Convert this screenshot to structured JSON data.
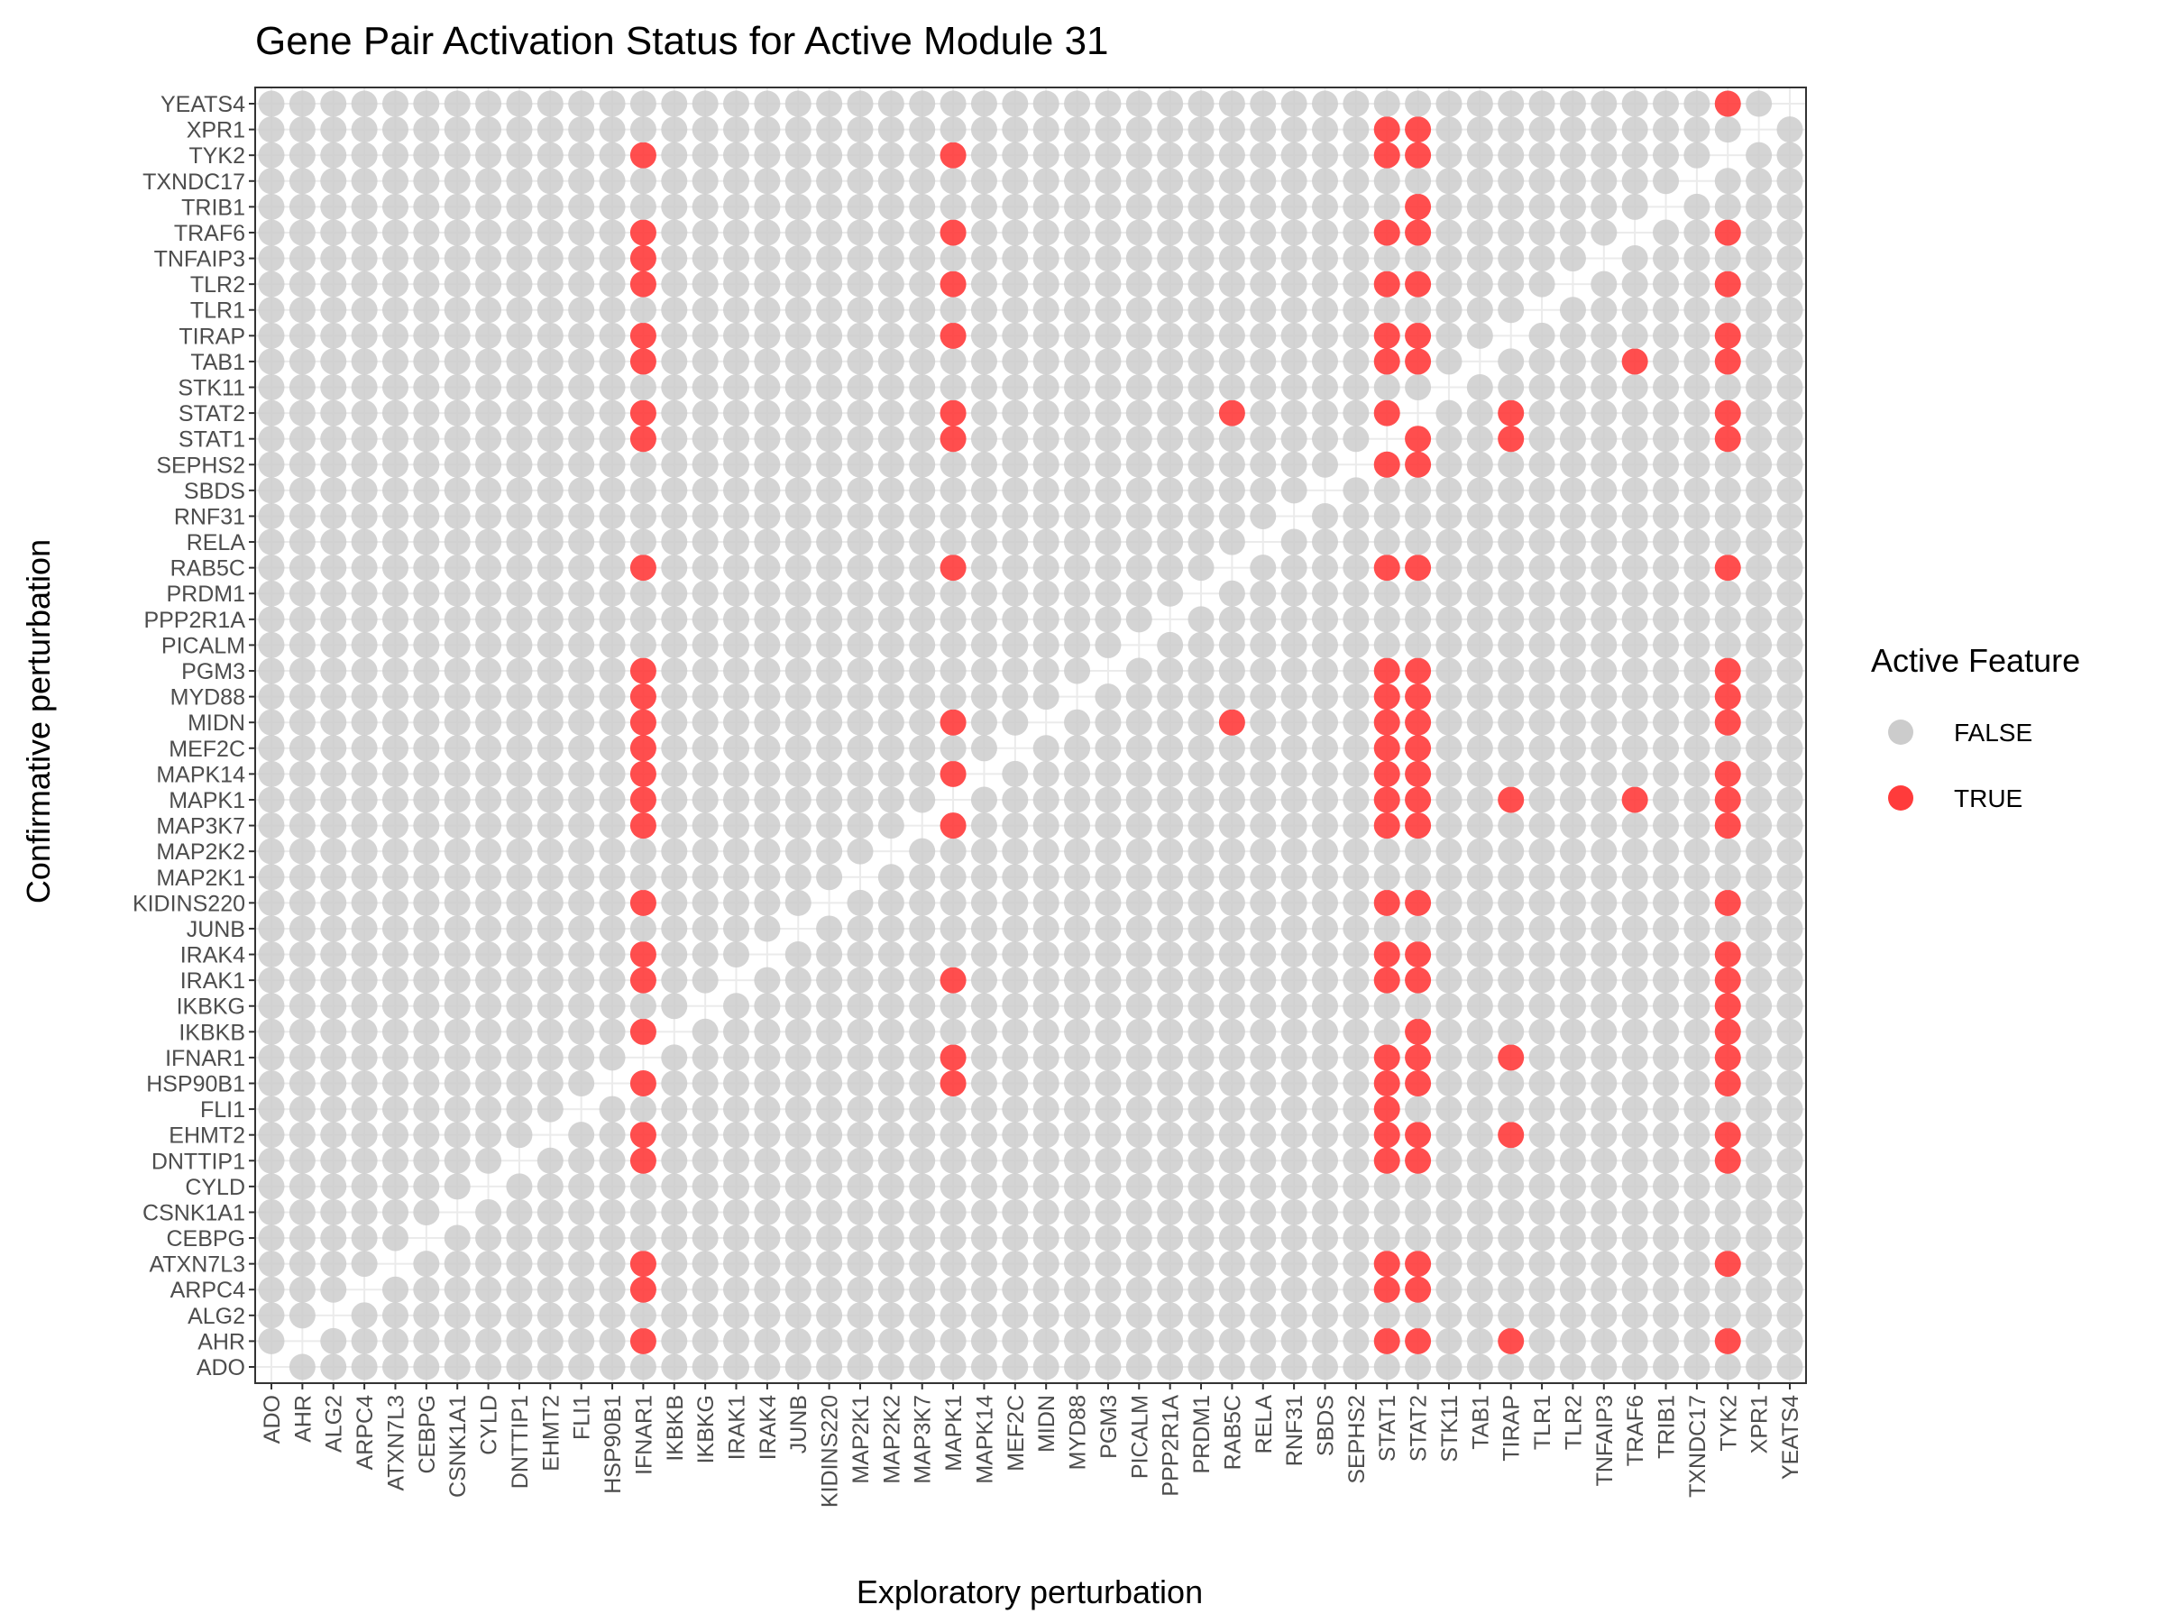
{
  "chart_data": {
    "type": "scatter",
    "title": "Gene Pair Activation Status for Active Module 31",
    "xlabel": "Exploratory perturbation",
    "ylabel": "Confirmative perturbation",
    "genes": [
      "ADO",
      "AHR",
      "ALG2",
      "ARPC4",
      "ATXN7L3",
      "CEBPG",
      "CSNK1A1",
      "CYLD",
      "DNTTIP1",
      "EHMT2",
      "FLI1",
      "HSP90B1",
      "IFNAR1",
      "IKBKB",
      "IKBKG",
      "IRAK1",
      "IRAK4",
      "JUNB",
      "KIDINS220",
      "MAP2K1",
      "MAP2K2",
      "MAP3K7",
      "MAPK1",
      "MAPK14",
      "MEF2C",
      "MIDN",
      "MYD88",
      "PGM3",
      "PICALM",
      "PPP2R1A",
      "PRDM1",
      "RAB5C",
      "RELA",
      "RNF31",
      "SBDS",
      "SEPHS2",
      "STAT1",
      "STAT2",
      "STK11",
      "TAB1",
      "TIRAP",
      "TLR1",
      "TLR2",
      "TNFAIP3",
      "TRAF6",
      "TRIB1",
      "TXNDC17",
      "TYK2",
      "XPR1",
      "YEATS4"
    ],
    "x_categories": [
      "ADO",
      "AHR",
      "ALG2",
      "ARPC4",
      "ATXN7L3",
      "CEBPG",
      "CSNK1A1",
      "CYLD",
      "DNTTIP1",
      "EHMT2",
      "FLI1",
      "HSP90B1",
      "IFNAR1",
      "IKBKB",
      "IKBKG",
      "IRAK1",
      "IRAK4",
      "JUNB",
      "KIDINS220",
      "MAP2K1",
      "MAP2K2",
      "MAP3K7",
      "MAPK1",
      "MAPK14",
      "MEF2C",
      "MIDN",
      "MYD88",
      "PGM3",
      "PICALM",
      "PPP2R1A",
      "PRDM1",
      "RAB5C",
      "RELA",
      "RNF31",
      "SBDS",
      "SEPHS2",
      "STAT1",
      "STAT2",
      "STK11",
      "TAB1",
      "TIRAP",
      "TLR1",
      "TLR2",
      "TNFAIP3",
      "TRAF6",
      "TRIB1",
      "TXNDC17",
      "TYK2",
      "XPR1",
      "YEATS4"
    ],
    "y_categories": [
      "ADO",
      "AHR",
      "ALG2",
      "ARPC4",
      "ATXN7L3",
      "CEBPG",
      "CSNK1A1",
      "CYLD",
      "DNTTIP1",
      "EHMT2",
      "FLI1",
      "HSP90B1",
      "IFNAR1",
      "IKBKB",
      "IKBKG",
      "IRAK1",
      "IRAK4",
      "JUNB",
      "KIDINS220",
      "MAP2K1",
      "MAP2K2",
      "MAP3K7",
      "MAPK1",
      "MAPK14",
      "MEF2C",
      "MIDN",
      "MYD88",
      "PGM3",
      "PICALM",
      "PPP2R1A",
      "PRDM1",
      "RAB5C",
      "RELA",
      "RNF31",
      "SBDS",
      "SEPHS2",
      "STAT1",
      "STAT2",
      "STK11",
      "TAB1",
      "TIRAP",
      "TLR1",
      "TLR2",
      "TNFAIP3",
      "TRAF6",
      "TRIB1",
      "TXNDC17",
      "TYK2",
      "XPR1",
      "YEATS4"
    ],
    "points_rule": "one point per pair (exploratory, confirmative) with exploratory != confirmative; all other pairs FALSE",
    "true_pairs": [
      {
        "confirmative": "YEATS4",
        "exploratory": [
          "TYK2"
        ]
      },
      {
        "confirmative": "XPR1",
        "exploratory": [
          "STAT1",
          "STAT2"
        ]
      },
      {
        "confirmative": "TYK2",
        "exploratory": [
          "IFNAR1",
          "MAPK1",
          "STAT1",
          "STAT2"
        ]
      },
      {
        "confirmative": "TRIB1",
        "exploratory": [
          "STAT2"
        ]
      },
      {
        "confirmative": "TRAF6",
        "exploratory": [
          "IFNAR1",
          "MAPK1",
          "STAT1",
          "STAT2",
          "TYK2"
        ]
      },
      {
        "confirmative": "TNFAIP3",
        "exploratory": [
          "IFNAR1"
        ]
      },
      {
        "confirmative": "TLR2",
        "exploratory": [
          "IFNAR1",
          "MAPK1",
          "STAT1",
          "STAT2",
          "TYK2"
        ]
      },
      {
        "confirmative": "TIRAP",
        "exploratory": [
          "IFNAR1",
          "MAPK1",
          "STAT1",
          "STAT2",
          "TYK2"
        ]
      },
      {
        "confirmative": "TAB1",
        "exploratory": [
          "IFNAR1",
          "STAT1",
          "STAT2",
          "TRAF6",
          "TYK2"
        ]
      },
      {
        "confirmative": "STAT2",
        "exploratory": [
          "IFNAR1",
          "MAPK1",
          "RAB5C",
          "STAT1",
          "TIRAP",
          "TYK2"
        ]
      },
      {
        "confirmative": "STAT1",
        "exploratory": [
          "IFNAR1",
          "MAPK1",
          "STAT2",
          "TIRAP",
          "TYK2"
        ]
      },
      {
        "confirmative": "SEPHS2",
        "exploratory": [
          "STAT1",
          "STAT2"
        ]
      },
      {
        "confirmative": "RAB5C",
        "exploratory": [
          "IFNAR1",
          "MAPK1",
          "STAT1",
          "STAT2",
          "TYK2"
        ]
      },
      {
        "confirmative": "PGM3",
        "exploratory": [
          "IFNAR1",
          "STAT1",
          "STAT2",
          "TYK2"
        ]
      },
      {
        "confirmative": "MYD88",
        "exploratory": [
          "IFNAR1",
          "STAT1",
          "STAT2",
          "TYK2"
        ]
      },
      {
        "confirmative": "MIDN",
        "exploratory": [
          "IFNAR1",
          "MAPK1",
          "RAB5C",
          "STAT1",
          "STAT2",
          "TYK2"
        ]
      },
      {
        "confirmative": "MEF2C",
        "exploratory": [
          "IFNAR1",
          "STAT1",
          "STAT2"
        ]
      },
      {
        "confirmative": "MAPK14",
        "exploratory": [
          "IFNAR1",
          "MAPK1",
          "STAT1",
          "STAT2",
          "TYK2"
        ]
      },
      {
        "confirmative": "MAPK1",
        "exploratory": [
          "IFNAR1",
          "STAT1",
          "STAT2",
          "TIRAP",
          "TRAF6",
          "TYK2"
        ]
      },
      {
        "confirmative": "MAP3K7",
        "exploratory": [
          "IFNAR1",
          "MAPK1",
          "STAT1",
          "STAT2",
          "TYK2"
        ]
      },
      {
        "confirmative": "KIDINS220",
        "exploratory": [
          "IFNAR1",
          "STAT1",
          "STAT2",
          "TYK2"
        ]
      },
      {
        "confirmative": "IRAK4",
        "exploratory": [
          "IFNAR1",
          "STAT1",
          "STAT2",
          "TYK2"
        ]
      },
      {
        "confirmative": "IRAK1",
        "exploratory": [
          "IFNAR1",
          "MAPK1",
          "STAT1",
          "STAT2",
          "TYK2"
        ]
      },
      {
        "confirmative": "IKBKG",
        "exploratory": [
          "TYK2"
        ]
      },
      {
        "confirmative": "IKBKB",
        "exploratory": [
          "IFNAR1",
          "STAT2",
          "TYK2"
        ]
      },
      {
        "confirmative": "IFNAR1",
        "exploratory": [
          "MAPK1",
          "STAT1",
          "STAT2",
          "TIRAP",
          "TYK2"
        ]
      },
      {
        "confirmative": "HSP90B1",
        "exploratory": [
          "IFNAR1",
          "MAPK1",
          "STAT1",
          "STAT2",
          "TYK2"
        ]
      },
      {
        "confirmative": "FLI1",
        "exploratory": [
          "STAT1"
        ]
      },
      {
        "confirmative": "EHMT2",
        "exploratory": [
          "IFNAR1",
          "STAT1",
          "STAT2",
          "TIRAP",
          "TYK2"
        ]
      },
      {
        "confirmative": "DNTTIP1",
        "exploratory": [
          "IFNAR1",
          "STAT1",
          "STAT2",
          "TYK2"
        ]
      },
      {
        "confirmative": "ATXN7L3",
        "exploratory": [
          "IFNAR1",
          "STAT1",
          "STAT2",
          "TYK2"
        ]
      },
      {
        "confirmative": "ARPC4",
        "exploratory": [
          "IFNAR1",
          "STAT1",
          "STAT2"
        ]
      },
      {
        "confirmative": "AHR",
        "exploratory": [
          "IFNAR1",
          "STAT1",
          "STAT2",
          "TIRAP",
          "TYK2"
        ]
      }
    ],
    "legend": {
      "title": "Active Feature",
      "position": "right",
      "entries": [
        {
          "label": "FALSE",
          "color": "#cccccc"
        },
        {
          "label": "TRUE",
          "color": "#ff3b3b"
        }
      ]
    },
    "grid": true
  },
  "colors": {
    "false_point": "#cccccc",
    "true_point": "#ff3b3b",
    "true_point_opacity": 0.9,
    "false_point_opacity": 0.85,
    "grid": "#ebebeb",
    "panel_border": "#333333",
    "tick": "#333333"
  }
}
